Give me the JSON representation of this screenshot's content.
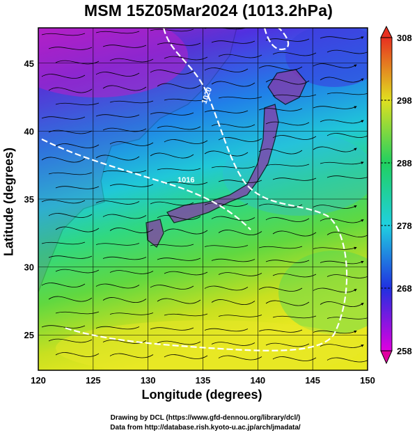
{
  "title": "MSM 15Z05Mar2024 (1013.2hPa)",
  "axes": {
    "xlabel": "Longitude (degrees)",
    "ylabel": "Latitude  (degrees)",
    "x_ticks": [
      "120",
      "125",
      "130",
      "135",
      "140",
      "145",
      "150"
    ],
    "y_ticks": [
      "25",
      "30",
      "35",
      "40",
      "45"
    ],
    "xlim": [
      120,
      150
    ],
    "ylim": [
      22.4,
      47.6
    ],
    "x_tick_values": [
      120,
      125,
      130,
      135,
      140,
      145,
      150
    ],
    "y_tick_values": [
      25,
      30,
      35,
      40,
      45
    ],
    "grid": true
  },
  "colorbar": {
    "min": 258,
    "max": 308,
    "labels": [
      "308",
      "298",
      "288",
      "278",
      "268",
      "258"
    ],
    "label_values": [
      308,
      298,
      288,
      278,
      268,
      258
    ],
    "colors": [
      "#e000e0",
      "#2030e0",
      "#20d0e0",
      "#20d060",
      "#e0e020",
      "#e83020"
    ]
  },
  "contour_labels": [
    "1020",
    "1016"
  ],
  "credits": {
    "line1": "Drawing by DCL (https://www.gfd-dennou.org/library/dcl/)",
    "line2": "Data from http://database.rish.kyoto-u.ac.jp/arch/jmadata/"
  }
}
